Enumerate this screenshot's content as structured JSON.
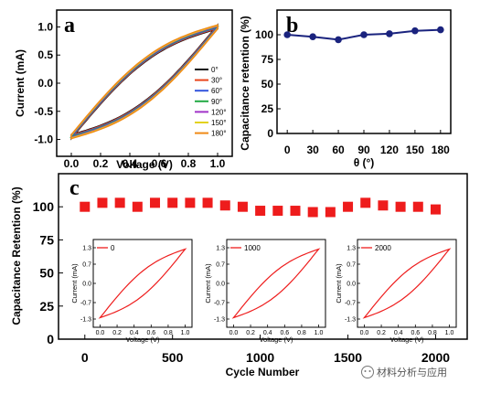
{
  "chart_data": [
    {
      "panel": "a",
      "type": "line",
      "xlabel": "Voltage (V)",
      "ylabel": "Current (mA)",
      "xlim": [
        -0.1,
        1.1
      ],
      "ylim": [
        -1.3,
        1.3
      ],
      "xticks": [
        "0.0",
        "0.2",
        "0.4",
        "0.6",
        "0.8",
        "1.0"
      ],
      "yticks": [
        "-1.0",
        "-0.5",
        "0.0",
        "0.5",
        "1.0"
      ],
      "legend_position": "right",
      "series": [
        {
          "name": "0°",
          "color": "#111111"
        },
        {
          "name": "30°",
          "color": "#e8451c"
        },
        {
          "name": "60°",
          "color": "#3355dd"
        },
        {
          "name": "90°",
          "color": "#22aa44"
        },
        {
          "name": "120°",
          "color": "#a033c8"
        },
        {
          "name": "150°",
          "color": "#e3d21a"
        },
        {
          "name": "180°",
          "color": "#f08a16"
        }
      ]
    },
    {
      "panel": "b",
      "type": "line",
      "xlabel": "θ (°)",
      "ylabel": "Capacitance retention (%)",
      "xlim": [
        -12,
        192
      ],
      "ylim": [
        0,
        125
      ],
      "xticks": [
        "0",
        "30",
        "60",
        "90",
        "120",
        "150",
        "180"
      ],
      "yticks": [
        "0",
        "25",
        "50",
        "75",
        "100"
      ],
      "x": [
        0,
        30,
        60,
        90,
        120,
        150,
        180
      ],
      "values": [
        100,
        98,
        95,
        100,
        101,
        104,
        105
      ],
      "color": "#1a237e"
    },
    {
      "panel": "c",
      "type": "scatter",
      "xlabel": "Cycle Number",
      "ylabel": "Capacitance Retention (%)",
      "xlim": [
        -150,
        2180
      ],
      "ylim": [
        0,
        125
      ],
      "xticks": [
        "0",
        "500",
        "1000",
        "1500",
        "2000"
      ],
      "yticks": [
        "0",
        "25",
        "50",
        "75",
        "100"
      ],
      "x": [
        0,
        100,
        200,
        300,
        400,
        500,
        600,
        700,
        800,
        900,
        1000,
        1100,
        1200,
        1300,
        1400,
        1500,
        1600,
        1700,
        1800,
        1900,
        2000
      ],
      "values": [
        100,
        103,
        103,
        100,
        103,
        103,
        103,
        103,
        101,
        100,
        97,
        97,
        97,
        96,
        96,
        100,
        103,
        101,
        100,
        100,
        98
      ],
      "color": "#ee1c1c",
      "insets": [
        {
          "legend": "0",
          "xlabel": "Voltage (V)",
          "ylabel": "Current (mA)",
          "xticks": [
            "0.0",
            "0.2",
            "0.4",
            "0.6",
            "0.8",
            "1.0"
          ],
          "yticks": [
            "-1.3",
            "-0.7",
            "0.0",
            "0.7",
            "1.3"
          ]
        },
        {
          "legend": "1000",
          "xlabel": "Voltage (V)",
          "ylabel": "Current (mA)",
          "xticks": [
            "0.0",
            "0.2",
            "0.4",
            "0.6",
            "0.8",
            "1.0"
          ],
          "yticks": [
            "-1.3",
            "-0.7",
            "0.0",
            "0.7",
            "1.3"
          ]
        },
        {
          "legend": "2000",
          "xlabel": "Voltage (V)",
          "ylabel": "Current (mA)",
          "xticks": [
            "0.0",
            "0.2",
            "0.4",
            "0.6",
            "0.8",
            "1.0"
          ],
          "yticks": [
            "-1.3",
            "-0.7",
            "0.0",
            "0.7",
            "1.3"
          ]
        }
      ]
    }
  ],
  "watermark": "材料分析与应用"
}
